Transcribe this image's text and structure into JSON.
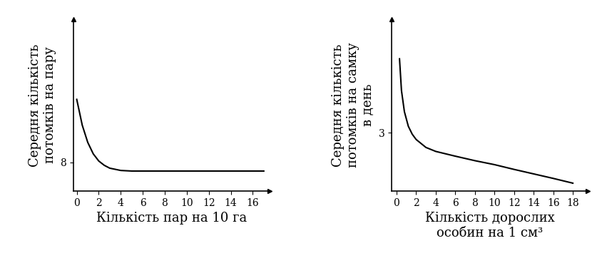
{
  "chart_data": [
    {
      "type": "line",
      "y_label": "Середня кількість\nпотомків на пару",
      "x_label": "Кількість пар на 10 га",
      "x": [
        0,
        0.5,
        1,
        1.5,
        2,
        2.5,
        3,
        4,
        5,
        6,
        8,
        10,
        12,
        14,
        16,
        17
      ],
      "values": [
        10.2,
        9.3,
        8.7,
        8.3,
        8.05,
        7.9,
        7.8,
        7.72,
        7.7,
        7.7,
        7.7,
        7.7,
        7.7,
        7.7,
        7.7,
        7.7
      ],
      "color": "#000000",
      "xlim": [
        -0.3,
        17.5
      ],
      "ylim": [
        7,
        13
      ],
      "xticks": [
        0,
        2,
        4,
        6,
        8,
        10,
        12,
        14,
        16
      ],
      "yticks": [
        8
      ]
    },
    {
      "type": "line",
      "y_label": "Середня кількість\nпотомків на самку\nв день",
      "x_label": "Кількість дорослих\nособин на 1 см³",
      "x": [
        0.3,
        0.5,
        0.8,
        1.2,
        1.6,
        2,
        3,
        4,
        6,
        8,
        10,
        12,
        14,
        16,
        18
      ],
      "values": [
        5.8,
        4.6,
        3.8,
        3.25,
        2.95,
        2.75,
        2.45,
        2.3,
        2.12,
        1.95,
        1.8,
        1.62,
        1.45,
        1.28,
        1.1
      ],
      "color": "#000000",
      "xlim": [
        -0.5,
        19.5
      ],
      "ylim": [
        0.8,
        7.3
      ],
      "xticks": [
        0,
        2,
        4,
        6,
        8,
        10,
        12,
        14,
        16,
        18
      ],
      "yticks": [
        3
      ]
    }
  ]
}
